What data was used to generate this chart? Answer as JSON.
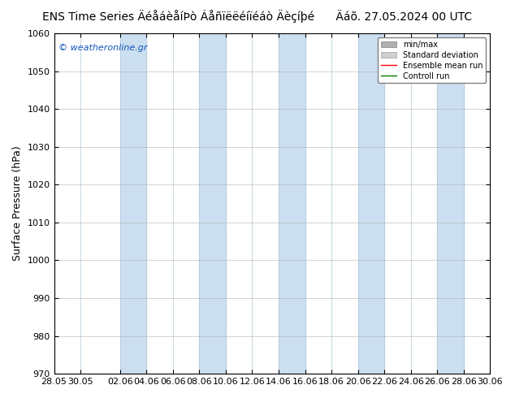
{
  "title_left": "ENS Time Series ÄéåáèåíÞò Áåñïëëéíïéáò Äèçíþé",
  "title_right": "Äáõ. 27.05.2024 00 UTC",
  "ylabel": "Surface Pressure (hPa)",
  "ylim": [
    970,
    1060
  ],
  "yticks": [
    970,
    980,
    990,
    1000,
    1010,
    1020,
    1030,
    1040,
    1050,
    1060
  ],
  "xtick_labels": [
    "28.05",
    "30.05",
    "02.06",
    "04.06",
    "06.06",
    "08.06",
    "10.06",
    "12.06",
    "14.06",
    "16.06",
    "18.06",
    "20.06",
    "22.06",
    "24.06",
    "26.06",
    "28.06",
    "30.06"
  ],
  "background_color": "#ffffff",
  "plot_bg_color": "#ffffff",
  "stripe_color": "#ccdff0",
  "watermark": "© weatheronline.gr",
  "legend_items": [
    "min/max",
    "Standard deviation",
    "Ensemble mean run",
    "Controll run"
  ],
  "title_fontsize": 10,
  "ylabel_fontsize": 9,
  "tick_fontsize": 8,
  "total_days": 33
}
